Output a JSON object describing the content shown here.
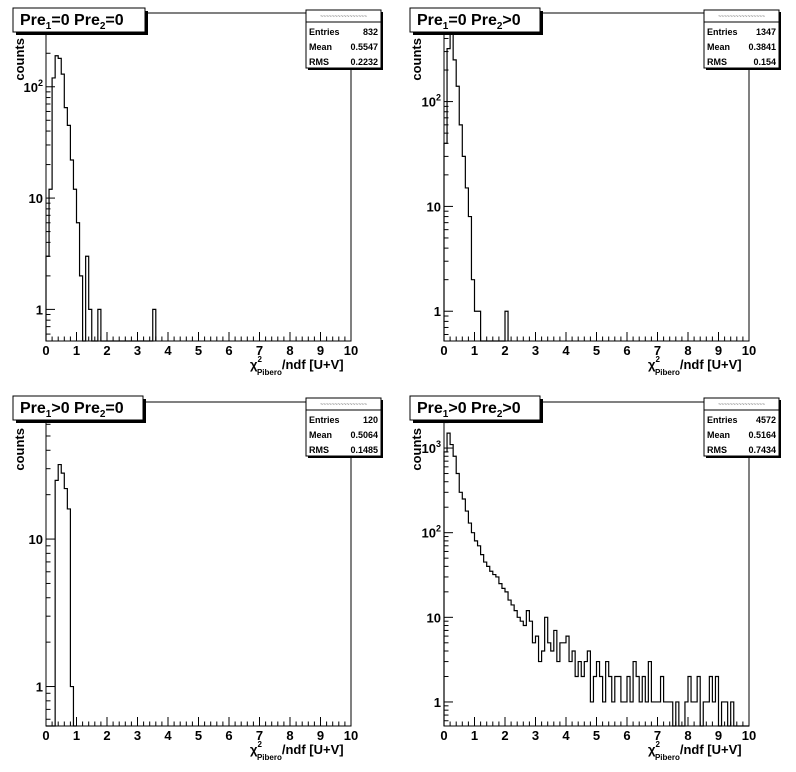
{
  "chart_data": [
    {
      "type": "histogram",
      "title": "Pre1=0 Pre2=0",
      "title_parts": [
        [
          "Pre",
          "n"
        ],
        [
          "1",
          "sub"
        ],
        [
          "=0  Pre",
          "n"
        ],
        [
          "2",
          "sub"
        ],
        [
          "=0",
          "n"
        ]
      ],
      "ylabel": "counts",
      "xlabel_prefix": "χ",
      "xlabel_sup": "2",
      "xlabel_sub": "Pibero",
      "xlabel_suffix": "/ndf [U+V]",
      "xlim": [
        0,
        10
      ],
      "xticks": [
        "0",
        "1",
        "2",
        "3",
        "4",
        "5",
        "6",
        "7",
        "8",
        "9",
        "10"
      ],
      "ylog": true,
      "ylim": [
        0.52,
        460
      ],
      "yticks": [
        {
          "v": 1,
          "label": "1"
        },
        {
          "v": 10,
          "label": "10"
        },
        {
          "v": 100,
          "label": "10",
          "sup": "2"
        }
      ],
      "stats": {
        "header": "~~~~~~~~~~~~~~~~",
        "rows": [
          [
            "Entries",
            "832"
          ],
          [
            "Mean",
            "0.5547"
          ],
          [
            "RMS",
            "0.2232"
          ]
        ]
      },
      "bin_width": 0.1,
      "counts": [
        3,
        12,
        120,
        190,
        180,
        130,
        65,
        45,
        22,
        12,
        6,
        2,
        0,
        3,
        1,
        0,
        0,
        1,
        0,
        0,
        0,
        0,
        0,
        0,
        0,
        0,
        0,
        0,
        0,
        0,
        0,
        0,
        0,
        0,
        0,
        1
      ]
    },
    {
      "type": "histogram",
      "title": "Pre1=0 Pre2>0",
      "title_parts": [
        [
          "Pre",
          "n"
        ],
        [
          "1",
          "sub"
        ],
        [
          "=0  Pre",
          "n"
        ],
        [
          "2",
          "sub"
        ],
        [
          ">0",
          "n"
        ]
      ],
      "ylabel": "counts",
      "xlabel_prefix": "χ",
      "xlabel_sup": "2",
      "xlabel_sub": "Pibero",
      "xlabel_suffix": "/ndf [U+V]",
      "xlim": [
        0,
        10
      ],
      "xticks": [
        "0",
        "1",
        "2",
        "3",
        "4",
        "5",
        "6",
        "7",
        "8",
        "9",
        "10"
      ],
      "ylog": true,
      "ylim": [
        0.52,
        700
      ],
      "yticks": [
        {
          "v": 1,
          "label": "1"
        },
        {
          "v": 10,
          "label": "10"
        },
        {
          "v": 100,
          "label": "10",
          "sup": "2"
        }
      ],
      "stats": {
        "header": "~~~~~~~~~~~~~~~~",
        "rows": [
          [
            "Entries",
            "1347"
          ],
          [
            "Mean",
            "0.3841"
          ],
          [
            "RMS",
            "0.154"
          ]
        ]
      },
      "bin_width": 0.1,
      "counts": [
        40,
        320,
        480,
        250,
        140,
        60,
        30,
        15,
        8,
        2,
        1,
        1,
        0,
        0,
        0,
        0,
        0,
        0,
        0,
        0,
        1
      ]
    },
    {
      "type": "histogram",
      "title": "Pre1>0 Pre2=0",
      "title_parts": [
        [
          "Pre",
          "n"
        ],
        [
          "1",
          "sub"
        ],
        [
          ">0  Pre",
          "n"
        ],
        [
          "2",
          "sub"
        ],
        [
          "=0",
          "n"
        ]
      ],
      "ylabel": "counts",
      "xlabel_prefix": "χ",
      "xlabel_sup": "2",
      "xlabel_sub": "Pibero",
      "xlabel_suffix": "/ndf [U+V]",
      "xlim": [
        0,
        10
      ],
      "xticks": [
        "0",
        "1",
        "2",
        "3",
        "4",
        "5",
        "6",
        "7",
        "8",
        "9",
        "10"
      ],
      "ylog": true,
      "ylim": [
        0.54,
        85
      ],
      "yticks": [
        {
          "v": 1,
          "label": "1"
        },
        {
          "v": 10,
          "label": "10"
        }
      ],
      "stats": {
        "header": "~~~~~~~~~~~~~~~~",
        "rows": [
          [
            "Entries",
            "120"
          ],
          [
            "Mean",
            "0.5064"
          ],
          [
            "RMS",
            "0.1485"
          ]
        ]
      },
      "bin_width": 0.1,
      "counts": [
        0,
        0,
        0,
        25,
        32,
        28,
        22,
        16,
        1,
        0
      ]
    },
    {
      "type": "histogram",
      "title": "Pre1>0 Pre2>0",
      "title_parts": [
        [
          "Pre",
          "n"
        ],
        [
          "1",
          "sub"
        ],
        [
          ">0  Pre",
          "n"
        ],
        [
          "2",
          "sub"
        ],
        [
          ">0",
          "n"
        ]
      ],
      "ylabel": "counts",
      "xlabel_prefix": "χ",
      "xlabel_sup": "2",
      "xlabel_sub": "Pibero",
      "xlabel_suffix": "/ndf [U+V]",
      "xlim": [
        0,
        10
      ],
      "xticks": [
        "0",
        "1",
        "2",
        "3",
        "4",
        "5",
        "6",
        "7",
        "8",
        "9",
        "10"
      ],
      "ylog": true,
      "ylim": [
        0.52,
        3500
      ],
      "yticks": [
        {
          "v": 1,
          "label": "1"
        },
        {
          "v": 10,
          "label": "10"
        },
        {
          "v": 100,
          "label": "10",
          "sup": "2"
        },
        {
          "v": 1000,
          "label": "10",
          "sup": "3"
        }
      ],
      "stats": {
        "header": "~~~~~~~~~~~~~~~~",
        "rows": [
          [
            "Entries",
            "4572"
          ],
          [
            "Mean",
            "0.5164"
          ],
          [
            "RMS",
            "0.7434"
          ]
        ]
      },
      "bin_width": 0.1,
      "counts": [
        900,
        1500,
        1100,
        800,
        500,
        300,
        250,
        180,
        130,
        100,
        80,
        70,
        55,
        45,
        40,
        35,
        32,
        30,
        25,
        22,
        20,
        16,
        14,
        12,
        10,
        9,
        8,
        12,
        9,
        5,
        6,
        3,
        4,
        10,
        5,
        4,
        7,
        3,
        5,
        5,
        6,
        3,
        4,
        2,
        3,
        2,
        3,
        4,
        1,
        2,
        3,
        2,
        1,
        3,
        2,
        1,
        2,
        2,
        1,
        1,
        2,
        1,
        3,
        2,
        1,
        2,
        1,
        3,
        1,
        1,
        1,
        2,
        1,
        1,
        1,
        0,
        1,
        0,
        0,
        1,
        2,
        1,
        1,
        2,
        0,
        1,
        1,
        2,
        1,
        2,
        0,
        1,
        1,
        0,
        1,
        0,
        0,
        0,
        0,
        0
      ]
    }
  ]
}
